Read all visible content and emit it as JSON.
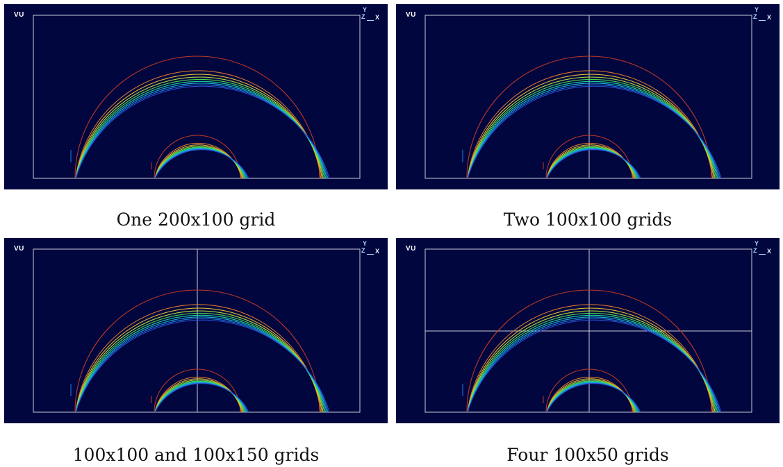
{
  "panels": [
    {
      "id": "p1",
      "vu_label": "VU",
      "axis_y": "Y",
      "axis_z": "Z",
      "axis_x": "X",
      "caption": "One 200x100 grid",
      "vdiv": false,
      "hdiv": false
    },
    {
      "id": "p2",
      "vu_label": "VU",
      "axis_y": "Y",
      "axis_z": "Z",
      "axis_x": "X",
      "caption": "Two 100x100 grids",
      "vdiv": true,
      "hdiv": false
    },
    {
      "id": "p3",
      "vu_label": "VU",
      "axis_y": "Y",
      "axis_z": "Z",
      "axis_x": "X",
      "caption": "100x100 and 100x150 grids",
      "vdiv": true,
      "hdiv": false
    },
    {
      "id": "p4",
      "vu_label": "VU",
      "axis_y": "Y",
      "axis_z": "Z",
      "axis_x": "X",
      "caption": "Four 100x50 grids",
      "vdiv": true,
      "hdiv": true
    }
  ],
  "colors": {
    "background": "#02063f",
    "grid_lines": "#c8ccd8",
    "contour_levels": [
      "#2a4fd6",
      "#1f7fe6",
      "#15b8d8",
      "#1fd8a0",
      "#4fe04a",
      "#b8e23a",
      "#e8c232",
      "#e07a28",
      "#c43a22"
    ]
  }
}
